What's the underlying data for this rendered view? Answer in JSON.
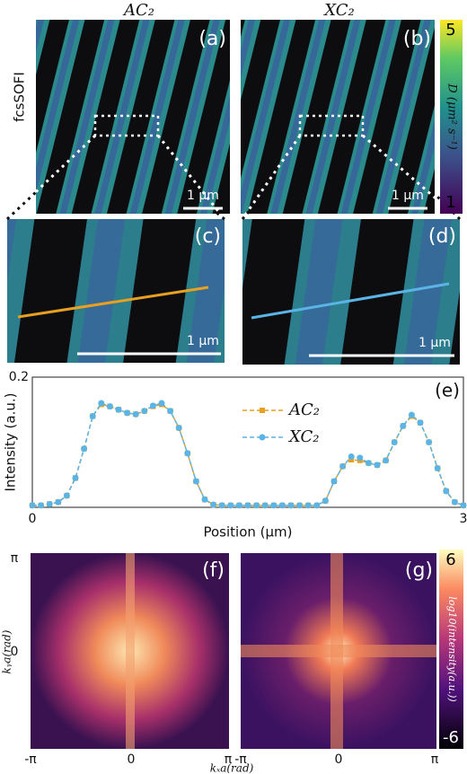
{
  "chart_data": {
    "type": "line",
    "annotation": "(e)",
    "xlabel": "Position (μm)",
    "ylabel": "Intensity (a.u.)",
    "x": [
      0,
      0.06,
      0.12,
      0.18,
      0.24,
      0.3,
      0.36,
      0.42,
      0.48,
      0.54,
      0.6,
      0.66,
      0.72,
      0.78,
      0.84,
      0.9,
      0.96,
      1.02,
      1.08,
      1.14,
      1.2,
      1.26,
      1.32,
      1.38,
      1.44,
      1.5,
      1.56,
      1.62,
      1.68,
      1.74,
      1.8,
      1.86,
      1.92,
      1.98,
      2.04,
      2.1,
      2.16,
      2.22,
      2.28,
      2.34,
      2.4,
      2.46,
      2.52,
      2.58,
      2.64,
      2.7,
      2.76,
      2.82,
      2.88,
      2.94,
      3.0
    ],
    "series": [
      {
        "name": "AC₂",
        "color": "#e8a020",
        "marker": "square",
        "values": [
          0.003,
          0.003,
          0.005,
          0.008,
          0.018,
          0.045,
          0.09,
          0.14,
          0.158,
          0.155,
          0.15,
          0.145,
          0.143,
          0.148,
          0.155,
          0.158,
          0.148,
          0.122,
          0.083,
          0.04,
          0.012,
          0.004,
          0.003,
          0.003,
          0.003,
          0.003,
          0.003,
          0.003,
          0.003,
          0.003,
          0.003,
          0.003,
          0.003,
          0.003,
          0.01,
          0.04,
          0.063,
          0.073,
          0.072,
          0.068,
          0.065,
          0.072,
          0.1,
          0.125,
          0.14,
          0.13,
          0.1,
          0.06,
          0.025,
          0.008,
          0.003
        ]
      },
      {
        "name": "XC₂",
        "color": "#5ab4e5",
        "marker": "circle",
        "values": [
          0.003,
          0.003,
          0.005,
          0.008,
          0.018,
          0.045,
          0.09,
          0.14,
          0.16,
          0.155,
          0.15,
          0.145,
          0.143,
          0.148,
          0.156,
          0.16,
          0.148,
          0.122,
          0.083,
          0.04,
          0.012,
          0.004,
          0.003,
          0.003,
          0.003,
          0.003,
          0.003,
          0.003,
          0.003,
          0.003,
          0.003,
          0.003,
          0.003,
          0.003,
          0.01,
          0.04,
          0.063,
          0.078,
          0.076,
          0.068,
          0.065,
          0.072,
          0.1,
          0.125,
          0.142,
          0.13,
          0.1,
          0.06,
          0.025,
          0.008,
          0.003
        ]
      }
    ],
    "xlim": [
      0,
      3
    ],
    "ylim": [
      0,
      0.2
    ],
    "xticks": [
      0,
      3
    ],
    "yticks": [
      0.2
    ]
  },
  "panels": {
    "column_titles": [
      "AC₂",
      "XC₂"
    ],
    "row_label": "fcsSOFI",
    "letters": [
      "(a)",
      "(b)",
      "(c)",
      "(d)",
      "(f)",
      "(g)"
    ],
    "scale_bar": "1 μm",
    "colorbar_d": {
      "label": "D (μm² s⁻¹)",
      "range": [
        1,
        5
      ],
      "ticks": [
        1,
        5
      ]
    },
    "colorbar_log": {
      "label": "log10(intensity(a.u.))",
      "range": [
        -6,
        6
      ],
      "ticks": [
        -6,
        6
      ]
    },
    "fourier": {
      "y_ticks": [
        "π",
        "0"
      ],
      "x_ticks": [
        "-π",
        "0",
        "π",
        "-π",
        "0",
        "π"
      ],
      "xlabel": "kₓa(rad)",
      "ylabel": "kᵧa(rad)"
    }
  }
}
